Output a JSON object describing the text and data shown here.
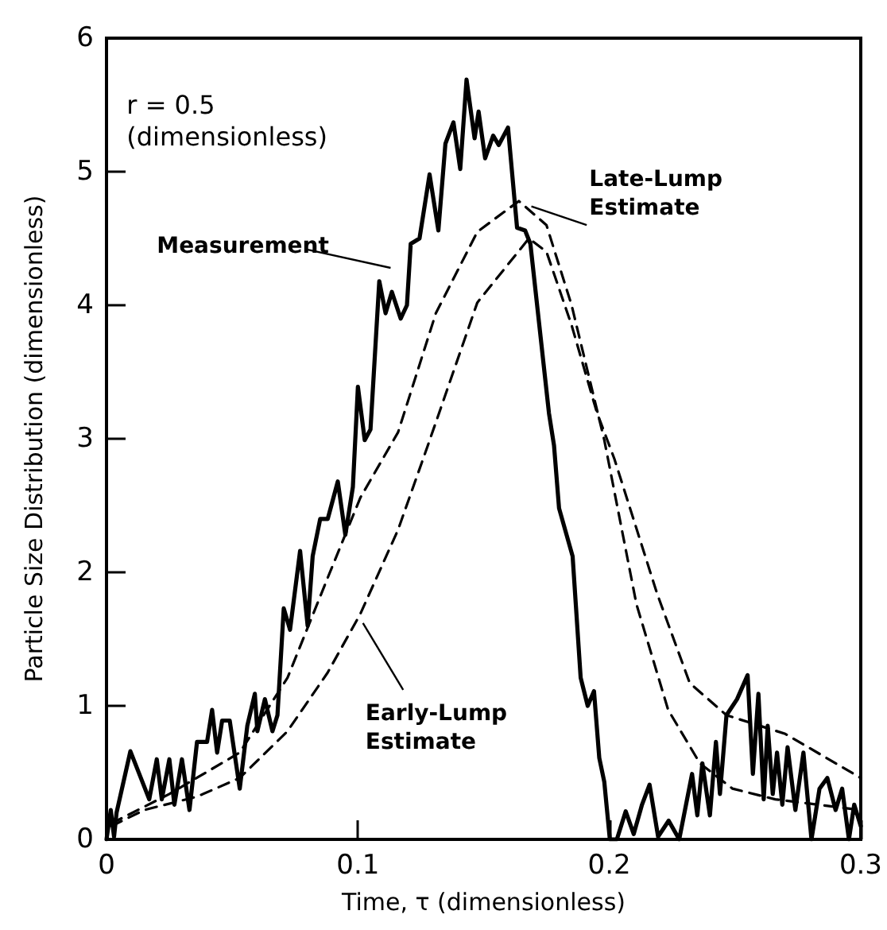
{
  "chart_data": {
    "type": "line",
    "xlabel": "Time, τ (dimensionless)",
    "ylabel": "Particle Size Distribution (dimensionless)",
    "annotations": [
      "r = 0.5\n(dimensionless)"
    ],
    "xlim": [
      0,
      0.3
    ],
    "xticks": [
      0,
      0.1,
      0.2,
      0.3
    ],
    "ylim": [
      0,
      6
    ],
    "yticks": [
      0,
      1,
      2,
      3,
      4,
      5,
      6
    ],
    "grid": false,
    "legend": false,
    "marker": "none",
    "series": [
      {
        "name": "Measurement",
        "color": "#000000",
        "line_style": "solid",
        "x": [
          0,
          0.0017,
          0.003,
          0.004,
          0.0095,
          0.017,
          0.02,
          0.022,
          0.025,
          0.027,
          0.03,
          0.033,
          0.036,
          0.04,
          0.042,
          0.044,
          0.046,
          0.049,
          0.053,
          0.056,
          0.059,
          0.06,
          0.063,
          0.066,
          0.068,
          0.0705,
          0.073,
          0.077,
          0.08,
          0.082,
          0.085,
          0.088,
          0.092,
          0.095,
          0.098,
          0.1,
          0.1027,
          0.105,
          0.1085,
          0.111,
          0.1135,
          0.117,
          0.1195,
          0.121,
          0.1245,
          0.1285,
          0.132,
          0.1348,
          0.138,
          0.1407,
          0.1432,
          0.1464,
          0.148,
          0.1506,
          0.1538,
          0.156,
          0.1597,
          0.1633,
          0.1665,
          0.1686,
          0.176,
          0.178,
          0.18,
          0.1854,
          0.1886,
          0.1914,
          0.1939,
          0.196,
          0.198,
          0.2002,
          0.203,
          0.2065,
          0.2097,
          0.213,
          0.216,
          0.2194,
          0.2236,
          0.2278,
          0.2329,
          0.235,
          0.237,
          0.24,
          0.2424,
          0.244,
          0.2466,
          0.2508,
          0.255,
          0.2571,
          0.2593,
          0.2614,
          0.263,
          0.265,
          0.2667,
          0.2688,
          0.2709,
          0.274,
          0.2772,
          0.2804,
          0.2836,
          0.2867,
          0.29,
          0.2926,
          0.2953,
          0.2974,
          0.3
        ],
        "values": [
          0,
          0.22,
          0.02,
          0.2,
          0.66,
          0.3,
          0.6,
          0.3,
          0.6,
          0.26,
          0.6,
          0.22,
          0.73,
          0.73,
          0.97,
          0.65,
          0.89,
          0.89,
          0.38,
          0.85,
          1.09,
          0.81,
          1.05,
          0.81,
          0.93,
          1.73,
          1.57,
          2.16,
          1.6,
          2.12,
          2.4,
          2.4,
          2.68,
          2.28,
          2.64,
          3.39,
          2.99,
          3.07,
          4.18,
          3.94,
          4.1,
          3.9,
          4.0,
          4.46,
          4.5,
          4.98,
          4.56,
          5.21,
          5.37,
          5.02,
          5.69,
          5.25,
          5.45,
          5.1,
          5.27,
          5.2,
          5.33,
          4.58,
          4.56,
          4.46,
          3.19,
          2.95,
          2.48,
          2.12,
          1.21,
          1.0,
          1.11,
          0.61,
          0.43,
          0,
          0,
          0.21,
          0.04,
          0.26,
          0.41,
          0.02,
          0.14,
          0,
          0.49,
          0.18,
          0.57,
          0.18,
          0.73,
          0.34,
          0.93,
          1.05,
          1.23,
          0.49,
          1.09,
          0.3,
          0.85,
          0.34,
          0.65,
          0.26,
          0.69,
          0.22,
          0.65,
          0,
          0.38,
          0.46,
          0.22,
          0.38,
          0,
          0.26,
          0.1
        ]
      },
      {
        "name": "Late-Lump Estimate",
        "color": "#000000",
        "line_style": "dashed",
        "x": [
          0.002,
          0.025,
          0.053,
          0.072,
          0.088,
          0.101,
          0.116,
          0.131,
          0.1475,
          0.164,
          0.175,
          0.185,
          0.198,
          0.2108,
          0.2234,
          0.236,
          0.249,
          0.266,
          0.3
        ],
        "values": [
          0.12,
          0.34,
          0.65,
          1.21,
          1.96,
          2.56,
          3.05,
          3.94,
          4.55,
          4.78,
          4.6,
          4.0,
          2.99,
          1.76,
          0.97,
          0.57,
          0.38,
          0.3,
          0.22
        ]
      },
      {
        "name": "Early-Lump Estimate",
        "color": "#000000",
        "line_style": "dashed",
        "x": [
          0.002,
          0.015,
          0.036,
          0.053,
          0.072,
          0.088,
          0.101,
          0.116,
          0.128,
          0.1475,
          0.168,
          0.175,
          0.185,
          0.195,
          0.202,
          0.219,
          0.232,
          0.2466,
          0.27,
          0.3
        ],
        "values": [
          0.1,
          0.22,
          0.32,
          0.46,
          0.81,
          1.25,
          1.69,
          2.32,
          2.96,
          4.02,
          4.5,
          4.4,
          3.85,
          3.2,
          2.85,
          1.84,
          1.17,
          0.93,
          0.79,
          0.46
        ]
      }
    ]
  }
}
